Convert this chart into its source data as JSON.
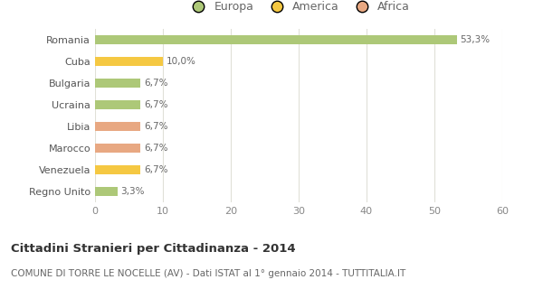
{
  "categories": [
    "Romania",
    "Cuba",
    "Bulgaria",
    "Ucraina",
    "Libia",
    "Marocco",
    "Venezuela",
    "Regno Unito"
  ],
  "values": [
    53.3,
    10.0,
    6.7,
    6.7,
    6.7,
    6.7,
    6.7,
    3.3
  ],
  "labels": [
    "53,3%",
    "10,0%",
    "6,7%",
    "6,7%",
    "6,7%",
    "6,7%",
    "6,7%",
    "3,3%"
  ],
  "colors": [
    "#adc878",
    "#f5c842",
    "#adc878",
    "#adc878",
    "#e8a882",
    "#e8a882",
    "#f5c842",
    "#adc878"
  ],
  "legend": [
    "Europa",
    "America",
    "Africa"
  ],
  "legend_colors": [
    "#adc878",
    "#f5c842",
    "#e8a882"
  ],
  "title": "Cittadini Stranieri per Cittadinanza - 2014",
  "subtitle": "COMUNE DI TORRE LE NOCELLE (AV) - Dati ISTAT al 1° gennaio 2014 - TUTTITALIA.IT",
  "xlim": [
    0,
    60
  ],
  "xticks": [
    0,
    10,
    20,
    30,
    40,
    50,
    60
  ],
  "bg_color": "#ffffff",
  "grid_color": "#e0e0d8",
  "bar_height": 0.45
}
